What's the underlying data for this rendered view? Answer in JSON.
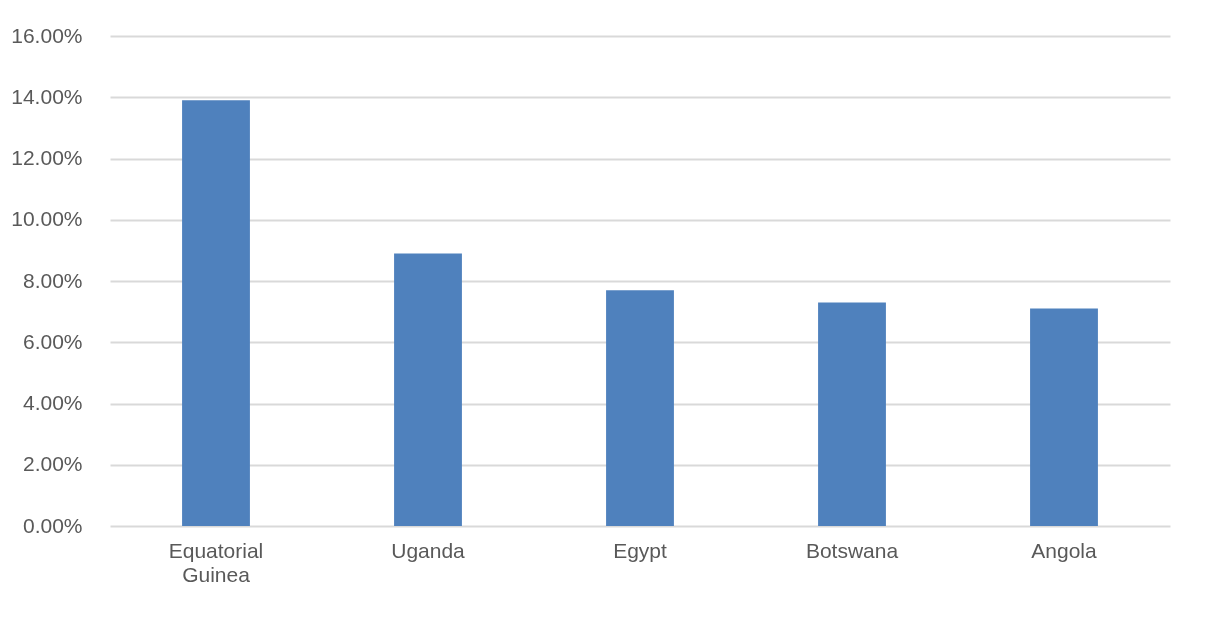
{
  "chart_data": {
    "type": "bar",
    "categories": [
      "Equatorial Guinea",
      "Uganda",
      "Egypt",
      "Botswana",
      "Angola"
    ],
    "values": [
      13.9,
      8.9,
      7.7,
      7.3,
      7.1
    ],
    "color": "#4f81bd",
    "ylim": [
      0,
      16
    ],
    "yticks": [
      {
        "value": 0,
        "label": "0.00%"
      },
      {
        "value": 2,
        "label": "2.00%"
      },
      {
        "value": 4,
        "label": "4.00%"
      },
      {
        "value": 6,
        "label": "6.00%"
      },
      {
        "value": 8,
        "label": "8.00%"
      },
      {
        "value": 10,
        "label": "10.00%"
      },
      {
        "value": 12,
        "label": "12.00%"
      },
      {
        "value": 14,
        "label": "14.00%"
      },
      {
        "value": 16,
        "label": "16.00%"
      }
    ],
    "grid": "y"
  }
}
